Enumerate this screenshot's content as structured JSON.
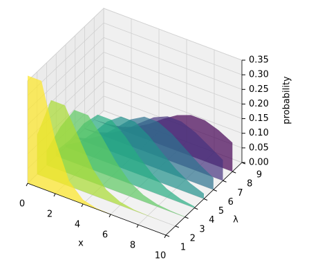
{
  "chart_data": {
    "type": "polygon3d",
    "xlabel": "x",
    "ylabel": "λ",
    "zlabel": "probability",
    "x": [
      0,
      1,
      2,
      3,
      4,
      5,
      6,
      7,
      8,
      9,
      10
    ],
    "series": [
      {
        "lambda": 1,
        "color": "#fde725",
        "values": [
          0.368,
          0.368,
          0.184,
          0.061,
          0.015,
          0.003,
          0.001,
          0,
          0,
          0,
          0
        ]
      },
      {
        "lambda": 2,
        "color": "#aadc32",
        "values": [
          0.135,
          0.271,
          0.271,
          0.18,
          0.09,
          0.036,
          0.012,
          0.003,
          0.001,
          0,
          0
        ]
      },
      {
        "lambda": 3,
        "color": "#5ec962",
        "values": [
          0.05,
          0.149,
          0.224,
          0.224,
          0.168,
          0.101,
          0.05,
          0.022,
          0.008,
          0.003,
          0.001
        ]
      },
      {
        "lambda": 4,
        "color": "#27ad81",
        "values": [
          0.018,
          0.073,
          0.147,
          0.195,
          0.195,
          0.156,
          0.104,
          0.06,
          0.03,
          0.013,
          0.005
        ]
      },
      {
        "lambda": 5,
        "color": "#21918c",
        "values": [
          0.007,
          0.034,
          0.084,
          0.14,
          0.175,
          0.175,
          0.146,
          0.104,
          0.065,
          0.036,
          0.018
        ]
      },
      {
        "lambda": 6,
        "color": "#2c728e",
        "values": [
          0.002,
          0.015,
          0.045,
          0.089,
          0.134,
          0.161,
          0.161,
          0.138,
          0.103,
          0.069,
          0.041
        ]
      },
      {
        "lambda": 7,
        "color": "#46337f",
        "values": [
          0.001,
          0.006,
          0.022,
          0.052,
          0.091,
          0.128,
          0.149,
          0.149,
          0.13,
          0.101,
          0.071
        ]
      },
      {
        "lambda": 8,
        "color": "#440154",
        "values": [
          0.0,
          0.003,
          0.011,
          0.029,
          0.057,
          0.092,
          0.122,
          0.14,
          0.14,
          0.124,
          0.099
        ]
      }
    ],
    "xlim": [
      0,
      10
    ],
    "xticks": [
      0,
      2,
      4,
      6,
      8,
      10
    ],
    "ylim": [
      1,
      9
    ],
    "yticks": [
      1,
      2,
      3,
      4,
      5,
      6,
      7,
      8,
      9
    ],
    "zlim": [
      0,
      0.35
    ],
    "zticks": [
      {
        "value": 0,
        "label": "0.00"
      },
      {
        "value": 0.05,
        "label": "0.05"
      },
      {
        "value": 0.1,
        "label": "0.10"
      },
      {
        "value": 0.15,
        "label": "0.15"
      },
      {
        "value": 0.2,
        "label": "0.20"
      },
      {
        "value": 0.25,
        "label": "0.25"
      },
      {
        "value": 0.3,
        "label": "0.30"
      },
      {
        "value": 0.35,
        "label": "0.35"
      }
    ],
    "alpha": 0.7,
    "grid": true
  }
}
